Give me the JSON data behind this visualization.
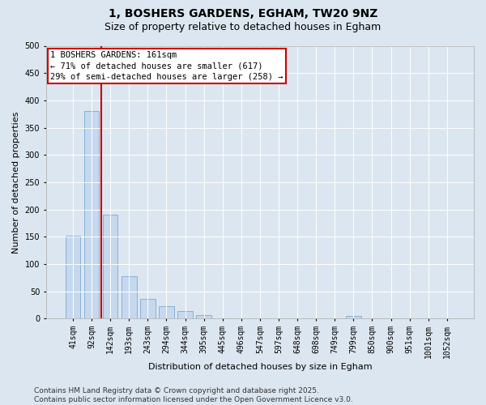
{
  "title_line1": "1, BOSHERS GARDENS, EGHAM, TW20 9NZ",
  "title_line2": "Size of property relative to detached houses in Egham",
  "xlabel": "Distribution of detached houses by size in Egham",
  "ylabel": "Number of detached properties",
  "categories": [
    "41sqm",
    "92sqm",
    "142sqm",
    "193sqm",
    "243sqm",
    "294sqm",
    "344sqm",
    "395sqm",
    "445sqm",
    "496sqm",
    "547sqm",
    "597sqm",
    "648sqm",
    "698sqm",
    "749sqm",
    "799sqm",
    "850sqm",
    "900sqm",
    "951sqm",
    "1001sqm",
    "1052sqm"
  ],
  "values": [
    152,
    380,
    190,
    78,
    36,
    22,
    14,
    6,
    1,
    0,
    0,
    0,
    0,
    0,
    0,
    4,
    0,
    0,
    0,
    0,
    0
  ],
  "bar_color": "#c5d8ee",
  "bar_edge_color": "#7aaad0",
  "vline_color": "#cc0000",
  "annotation_text": "1 BOSHERS GARDENS: 161sqm\n← 71% of detached houses are smaller (617)\n29% of semi-detached houses are larger (258) →",
  "annotation_box_color": "#ffffff",
  "annotation_box_edge_color": "#cc0000",
  "ylim": [
    0,
    500
  ],
  "yticks": [
    0,
    50,
    100,
    150,
    200,
    250,
    300,
    350,
    400,
    450,
    500
  ],
  "background_color": "#dce6f0",
  "plot_bg_color": "#dce6f0",
  "footer_text": "Contains HM Land Registry data © Crown copyright and database right 2025.\nContains public sector information licensed under the Open Government Licence v3.0.",
  "title_fontsize": 10,
  "subtitle_fontsize": 9,
  "axis_label_fontsize": 8,
  "tick_fontsize": 7,
  "annotation_fontsize": 7.5,
  "footer_fontsize": 6.5
}
